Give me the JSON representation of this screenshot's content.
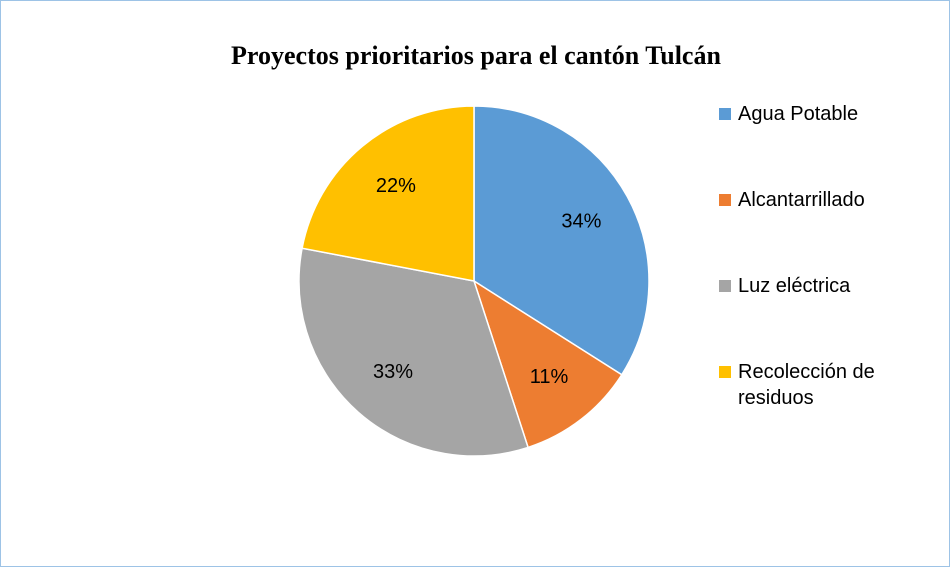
{
  "chart_data": {
    "type": "pie",
    "title": "Proyectos prioritarios para el cantón Tulcán",
    "categories": [
      "Agua Potable",
      "Alcantarrillado",
      "Luz eléctrica",
      "Recolección de residuos"
    ],
    "values": [
      34,
      11,
      33,
      22
    ],
    "value_labels": [
      "34%",
      "11%",
      "33%",
      "22%"
    ],
    "colors": [
      "#5b9bd5",
      "#ed7d31",
      "#a5a5a5",
      "#ffc000"
    ],
    "legend": "right"
  }
}
